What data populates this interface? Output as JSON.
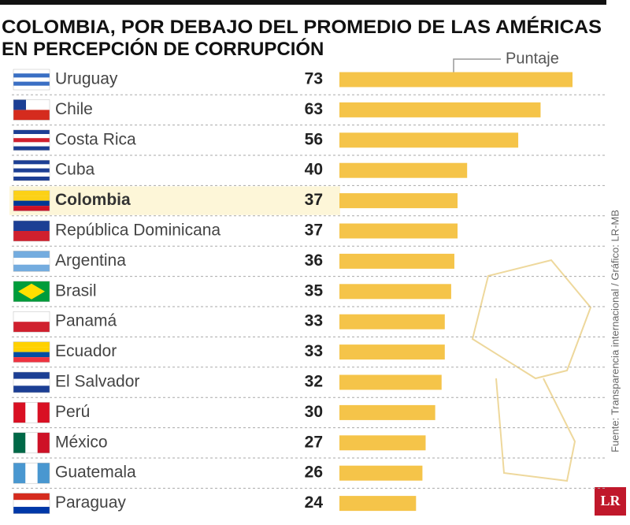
{
  "chart_data": {
    "type": "bar",
    "title": [
      "COLOMBIA, POR DEBAJO DEL PROMEDIO DE LAS AMÉRICAS",
      "EN PERCEPCIÓN DE CORRUPCIÓN"
    ],
    "value_label": "Puntaje",
    "categories": [
      "Uruguay",
      "Chile",
      "Costa Rica",
      "Cuba",
      "Colombia",
      "República Dominicana",
      "Argentina",
      "Brasil",
      "Panamá",
      "Ecuador",
      "El Salvador",
      "Perú",
      "México",
      "Guatemala",
      "Paraguay"
    ],
    "values": [
      73,
      63,
      56,
      40,
      37,
      37,
      36,
      35,
      33,
      33,
      32,
      30,
      27,
      26,
      24
    ],
    "color": "#f5c449",
    "source": "Fuente: Transparencia internacional / Gráfico: LR-MB",
    "logo": "LR"
  }
}
